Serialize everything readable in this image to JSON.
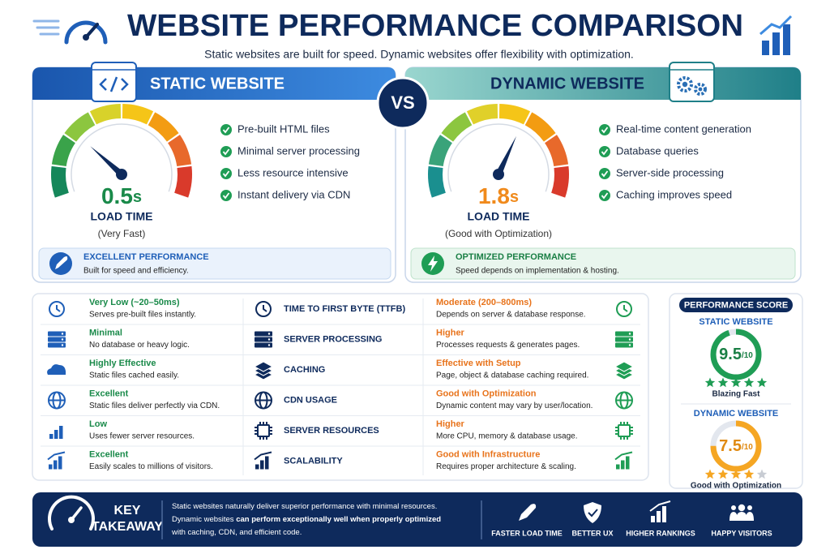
{
  "header": {
    "title": "WEBSITE PERFORMANCE COMPARISON",
    "subtitle": "Static websites are built for speed. Dynamic websites offer flexibility with optimization."
  },
  "vs": "VS",
  "static": {
    "title": "STATIC WEBSITE",
    "time": "0.5",
    "unit": "s",
    "time_label": "LOAD TIME",
    "time_note": "(Very Fast)",
    "features": [
      "Pre-built HTML files",
      "Minimal server processing",
      "Less resource intensive",
      "Instant delivery via CDN"
    ],
    "badge": {
      "title": "EXCELLENT PERFORMANCE",
      "text": "Built for speed and efficiency."
    }
  },
  "dynamic": {
    "title": "DYNAMIC WEBSITE",
    "time": "1.8",
    "unit": "s",
    "time_label": "LOAD TIME",
    "time_note": "(Good with Optimization)",
    "features": [
      "Real-time content generation",
      "Database queries",
      "Server-side processing",
      "Caching improves speed"
    ],
    "badge": {
      "title": "OPTIMIZED PERFORMANCE",
      "text": "Speed depends on implementation & hosting."
    }
  },
  "comparison": {
    "rows": [
      {
        "metric": "TIME TO FIRST BYTE (TTFB)",
        "static_title": "Very Low (~20–50ms)",
        "static_text": "Serves pre-built files instantly.",
        "dynamic_title": "Moderate (200–800ms)",
        "dynamic_text": "Depends on server & database response."
      },
      {
        "metric": "SERVER PROCESSING",
        "static_title": "Minimal",
        "static_text": "No database or heavy logic.",
        "dynamic_title": "Higher",
        "dynamic_text": "Processes requests & generates pages."
      },
      {
        "metric": "CACHING",
        "static_title": "Highly Effective",
        "static_text": "Static files cached easily.",
        "dynamic_title": "Effective with Setup",
        "dynamic_text": "Page, object & database caching required."
      },
      {
        "metric": "CDN USAGE",
        "static_title": "Excellent",
        "static_text": "Static files deliver perfectly via CDN.",
        "dynamic_title": "Good with Optimization",
        "dynamic_text": "Dynamic content may vary by user/location."
      },
      {
        "metric": "SERVER RESOURCES",
        "static_title": "Low",
        "static_text": "Uses fewer server resources.",
        "dynamic_title": "Higher",
        "dynamic_text": "More CPU, memory & database usage."
      },
      {
        "metric": "SCALABILITY",
        "static_title": "Excellent",
        "static_text": "Easily scales to millions of visitors.",
        "dynamic_title": "Good with Infrastructure",
        "dynamic_text": "Requires proper architecture & scaling."
      }
    ]
  },
  "score": {
    "title": "PERFORMANCE SCORE",
    "static": {
      "label": "STATIC WEBSITE",
      "score": 9.5,
      "out_of": {
        "value": 10,
        "label": "/10"
      },
      "stars": 5,
      "note": "Blazing Fast"
    },
    "dynamic": {
      "label": "DYNAMIC WEBSITE",
      "score": 7.5,
      "out_of": {
        "value": 10,
        "label": "/10"
      },
      "stars": 4,
      "note": "Good with Optimization"
    }
  },
  "takeaway": {
    "heading": [
      "KEY",
      "TAKEAWAY"
    ],
    "lines": [
      [
        "Static websites naturally deliver superior performance with minimal resources."
      ],
      [
        "Dynamic websites ",
        "can perform exceptionally well when properly optimized"
      ],
      [
        "with caching, CDN, and efficient code."
      ]
    ],
    "benefits": [
      "FASTER LOAD TIME",
      "BETTER UX",
      "HIGHER RANKINGS",
      "HAPPY VISITORS"
    ]
  }
}
